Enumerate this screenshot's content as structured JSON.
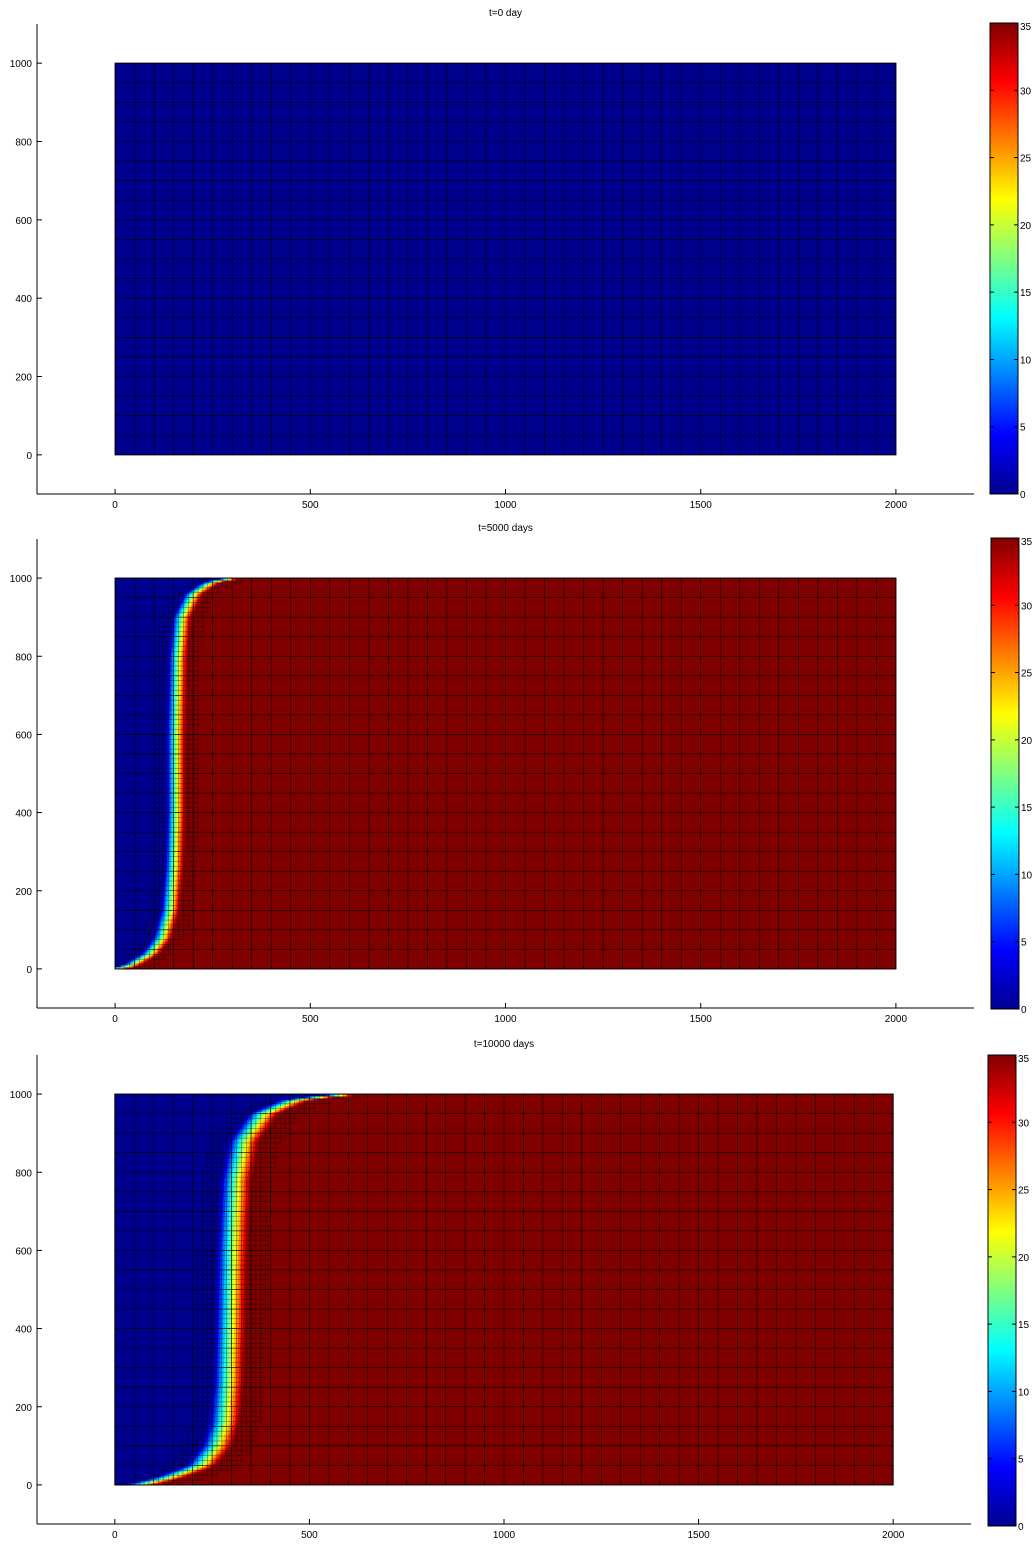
{
  "chart_data": [
    {
      "type": "heatmap",
      "title": "t=0 day",
      "xlabel": "",
      "ylabel": "",
      "xlim": [
        -200,
        2200
      ],
      "ylim": [
        -100,
        1100
      ],
      "domain_x": [
        0,
        2000
      ],
      "domain_y": [
        0,
        1000
      ],
      "xticks": [
        0,
        500,
        1000,
        1500,
        2000
      ],
      "yticks": [
        0,
        200,
        400,
        600,
        800,
        1000
      ],
      "grid": "mesh",
      "coarse_cell": [
        50,
        50
      ],
      "front_x": [],
      "front_y": [],
      "colorbar": {
        "min": 0,
        "max": 35,
        "ticks": [
          0,
          5,
          10,
          15,
          20,
          25,
          30,
          35
        ],
        "colormap": "jet"
      },
      "state": "uniform value 0 over whole domain"
    },
    {
      "type": "heatmap",
      "title": "t=5000 days",
      "xlabel": "",
      "ylabel": "",
      "xlim": [
        -200,
        2200
      ],
      "ylim": [
        -100,
        1100
      ],
      "domain_x": [
        0,
        2000
      ],
      "domain_y": [
        0,
        1000
      ],
      "xticks": [
        0,
        500,
        1000,
        1500,
        2000
      ],
      "yticks": [
        0,
        200,
        400,
        600,
        800,
        1000
      ],
      "grid": "mesh",
      "coarse_cell": [
        50,
        50
      ],
      "front_x": [
        0,
        40,
        90,
        120,
        140,
        150,
        155,
        155,
        160,
        170,
        200,
        245,
        300
      ],
      "front_y": [
        0,
        10,
        40,
        80,
        150,
        260,
        400,
        600,
        800,
        900,
        960,
        990,
        1000
      ],
      "front_width": 25,
      "colorbar": {
        "min": 0,
        "max": 35,
        "ticks": [
          0,
          5,
          10,
          15,
          20,
          25,
          30,
          35
        ],
        "colormap": "jet"
      },
      "state": "value 0 left of front, 35 right of front"
    },
    {
      "type": "heatmap",
      "title": "t=10000 days",
      "xlabel": "",
      "ylabel": "",
      "xlim": [
        -200,
        2200
      ],
      "ylim": [
        -100,
        1100
      ],
      "domain_x": [
        0,
        2000
      ],
      "domain_y": [
        0,
        1000
      ],
      "xticks": [
        0,
        500,
        1000,
        1500,
        2000
      ],
      "yticks": [
        0,
        200,
        400,
        600,
        800,
        1000
      ],
      "grid": "mesh",
      "coarse_cell": [
        50,
        50
      ],
      "front_x": [
        60,
        140,
        220,
        260,
        280,
        290,
        295,
        300,
        310,
        330,
        380,
        460,
        560,
        640
      ],
      "front_y": [
        0,
        20,
        50,
        100,
        160,
        260,
        400,
        600,
        780,
        880,
        950,
        985,
        997,
        1000
      ],
      "front_width": 40,
      "colorbar": {
        "min": 0,
        "max": 35,
        "ticks": [
          0,
          5,
          10,
          15,
          20,
          25,
          30,
          35
        ],
        "colormap": "jet"
      },
      "state": "value 0 left of front, 35 right of front"
    }
  ]
}
